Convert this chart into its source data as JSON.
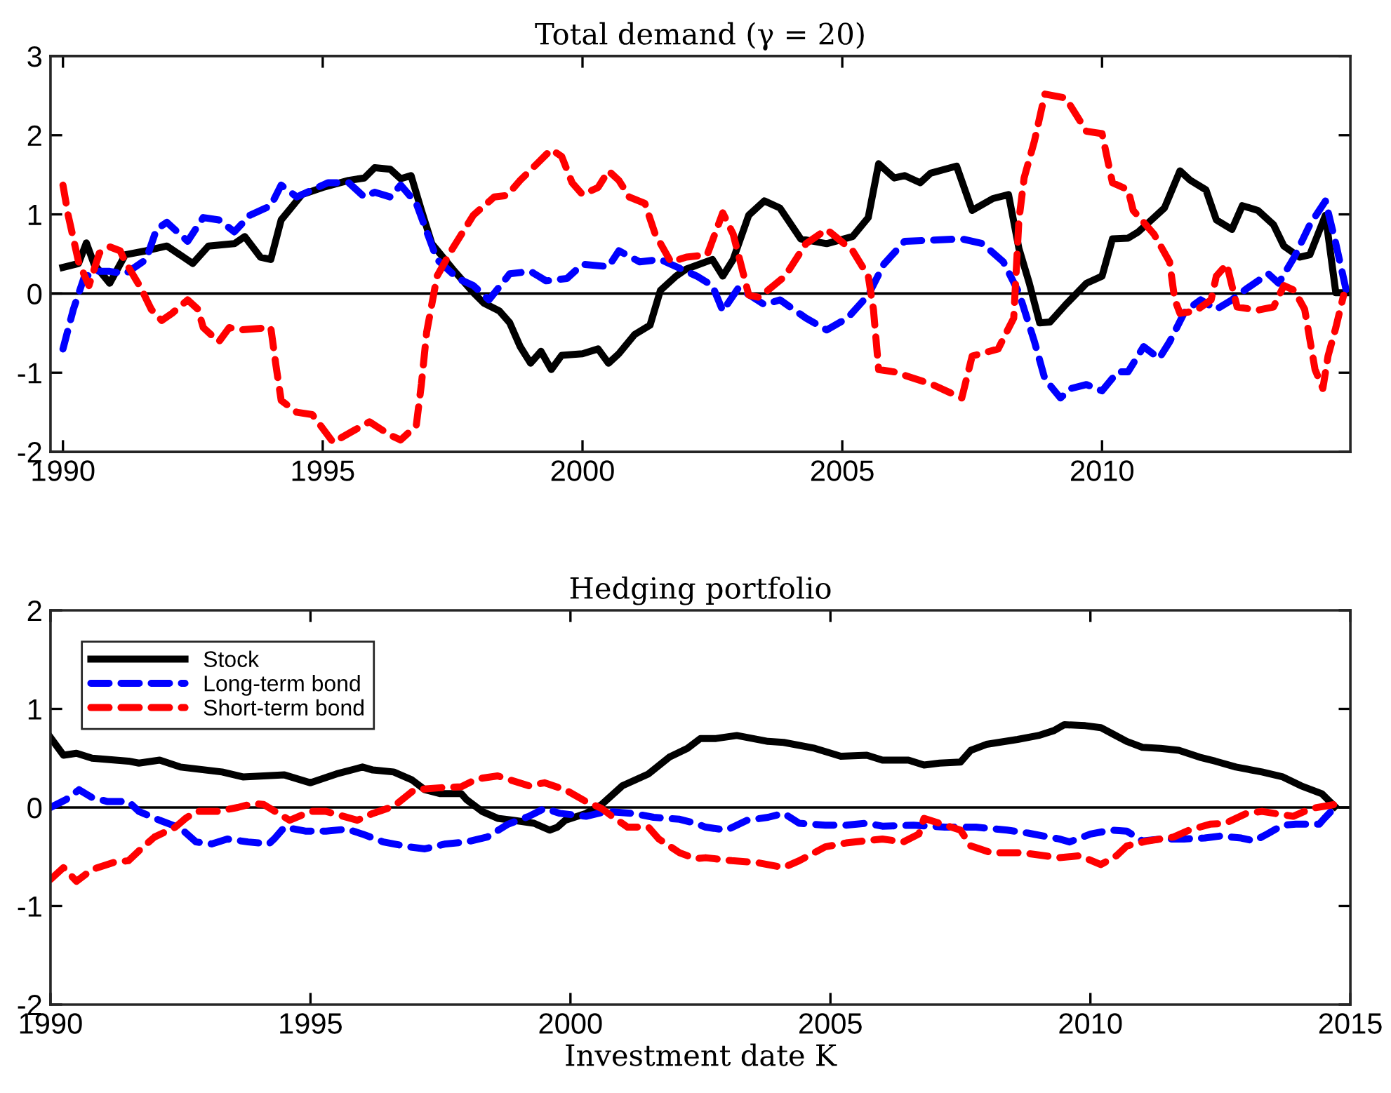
{
  "chart_data": [
    {
      "type": "line",
      "title": "Total demand (γ = 20)",
      "xlim": [
        1989.76,
        2014.78
      ],
      "xticks": [
        1990,
        1995,
        2000,
        2005,
        2010
      ],
      "ylim": [
        -2,
        3
      ],
      "yticks": [
        -2,
        -1,
        0,
        1,
        2,
        3
      ],
      "grid": false,
      "legend": false,
      "ref_lines": [
        {
          "axis": "y",
          "value": 0,
          "color": "#000000"
        }
      ],
      "series": [
        {
          "color": "#000000",
          "line_style": "solid",
          "x": [
            1990.0,
            1990.3,
            1990.45,
            1990.6,
            1990.9,
            1991.2,
            1991.6,
            1992.0,
            1992.5,
            1992.8,
            1993.3,
            1993.5,
            1993.8,
            1994.0,
            1994.2,
            1994.6,
            1995.0,
            1995.5,
            1995.8,
            1996.0,
            1996.3,
            1996.5,
            1996.7,
            1996.9,
            1997.1,
            1997.5,
            1997.9,
            1998.1,
            1998.4,
            1998.6,
            1998.8,
            1999.0,
            1999.2,
            1999.4,
            1999.6,
            2000.0,
            2000.3,
            2000.5,
            2000.7,
            2001.0,
            2001.3,
            2001.5,
            2001.8,
            2002.0,
            2002.5,
            2002.7,
            2002.9,
            2003.2,
            2003.5,
            2003.8,
            2004.2,
            2004.7,
            2005.2,
            2005.5,
            2005.7,
            2006.0,
            2006.2,
            2006.5,
            2006.7,
            2007.2,
            2007.5,
            2007.9,
            2008.2,
            2008.4,
            2008.6,
            2008.8,
            2009.0,
            2009.3,
            2009.7,
            2010.0,
            2010.2,
            2010.5,
            2010.7,
            2011.0,
            2011.2,
            2011.5,
            2011.7,
            2012.0,
            2012.2,
            2012.5,
            2012.7,
            2013.0,
            2013.3,
            2013.5,
            2013.8,
            2014.0,
            2014.3,
            2014.5,
            2014.7
          ],
          "values": [
            0.33,
            0.38,
            0.64,
            0.37,
            0.13,
            0.49,
            0.54,
            0.6,
            0.38,
            0.6,
            0.63,
            0.72,
            0.46,
            0.43,
            0.93,
            1.25,
            1.34,
            1.43,
            1.46,
            1.59,
            1.57,
            1.45,
            1.49,
            1.05,
            0.63,
            0.31,
            0.01,
            -0.12,
            -0.22,
            -0.37,
            -0.67,
            -0.88,
            -0.73,
            -0.96,
            -0.78,
            -0.76,
            -0.7,
            -0.88,
            -0.76,
            -0.52,
            -0.4,
            0.04,
            0.22,
            0.31,
            0.43,
            0.22,
            0.43,
            0.99,
            1.17,
            1.08,
            0.69,
            0.63,
            0.72,
            0.96,
            1.64,
            1.46,
            1.49,
            1.4,
            1.52,
            1.61,
            1.05,
            1.2,
            1.25,
            0.57,
            0.13,
            -0.37,
            -0.36,
            -0.14,
            0.13,
            0.22,
            0.69,
            0.7,
            0.78,
            0.96,
            1.08,
            1.55,
            1.43,
            1.31,
            0.93,
            0.81,
            1.11,
            1.05,
            0.87,
            0.6,
            0.46,
            0.49,
            0.99,
            0.01,
            0.01
          ]
        },
        {
          "color": "#0000ff",
          "line_style": "dashed",
          "x": [
            1990.0,
            1990.2,
            1990.4,
            1990.6,
            1990.9,
            1991.2,
            1991.6,
            1991.8,
            1992.0,
            1992.4,
            1992.7,
            1993.0,
            1993.3,
            1993.6,
            1994.0,
            1994.2,
            1994.5,
            1995.1,
            1995.5,
            1995.8,
            1996.0,
            1996.3,
            1996.5,
            1996.8,
            1997.2,
            1997.6,
            1997.9,
            1998.2,
            1998.6,
            1999.0,
            1999.3,
            1999.7,
            2000.0,
            2000.5,
            2000.7,
            2001.1,
            2001.5,
            2001.8,
            2002.2,
            2002.5,
            2002.7,
            2003.0,
            2003.5,
            2003.8,
            2004.3,
            2004.7,
            2005.1,
            2005.5,
            2005.8,
            2006.2,
            2006.9,
            2007.3,
            2007.7,
            2008.1,
            2008.4,
            2008.7,
            2008.9,
            2009.2,
            2009.4,
            2009.7,
            2010.0,
            2010.3,
            2010.5,
            2010.8,
            2011.1,
            2011.3,
            2011.6,
            2011.9,
            2012.2,
            2012.5,
            2012.8,
            2013.2,
            2013.4,
            2013.7,
            2014.0,
            2014.3,
            2014.5,
            2014.7
          ],
          "values": [
            -0.7,
            -0.2,
            0.19,
            0.28,
            0.28,
            0.25,
            0.43,
            0.81,
            0.9,
            0.66,
            0.96,
            0.93,
            0.78,
            0.99,
            1.11,
            1.37,
            1.22,
            1.4,
            1.4,
            1.22,
            1.28,
            1.22,
            1.37,
            1.14,
            0.43,
            0.19,
            0.1,
            -0.08,
            0.25,
            0.28,
            0.16,
            0.19,
            0.37,
            0.34,
            0.54,
            0.4,
            0.43,
            0.34,
            0.22,
            0.1,
            -0.22,
            0.07,
            -0.14,
            -0.08,
            -0.31,
            -0.46,
            -0.31,
            -0.02,
            0.37,
            0.66,
            0.68,
            0.69,
            0.63,
            0.4,
            0.01,
            -0.61,
            -1.08,
            -1.32,
            -1.2,
            -1.15,
            -1.23,
            -0.99,
            -0.99,
            -0.67,
            -0.82,
            -0.61,
            -0.22,
            -0.08,
            -0.2,
            -0.08,
            0.07,
            0.25,
            0.13,
            0.46,
            0.87,
            1.17,
            0.63,
            0.04
          ]
        },
        {
          "color": "#ff0000",
          "line_style": "dashed",
          "x": [
            1990.0,
            1990.1,
            1990.3,
            1990.5,
            1990.7,
            1990.9,
            1991.1,
            1991.2,
            1991.5,
            1991.7,
            1991.9,
            1992.1,
            1992.4,
            1992.6,
            1992.7,
            1993.0,
            1993.2,
            1993.4,
            1994.0,
            1994.1,
            1994.2,
            1994.5,
            1994.8,
            1995.2,
            1995.6,
            1995.9,
            1996.3,
            1996.5,
            1996.8,
            1996.9,
            1997.0,
            1997.2,
            1997.5,
            1997.9,
            1998.3,
            1998.55,
            1998.8,
            1999.4,
            1999.6,
            1999.8,
            2000.0,
            2000.3,
            2000.5,
            2000.7,
            2000.9,
            2001.2,
            2001.4,
            2001.7,
            2002.0,
            2002.4,
            2002.7,
            2002.9,
            2003.2,
            2003.4,
            2003.9,
            2004.3,
            2004.7,
            2005.2,
            2005.5,
            2005.6,
            2005.7,
            2006.0,
            2006.7,
            2007.3,
            2007.5,
            2008.0,
            2008.3,
            2008.4,
            2008.5,
            2008.7,
            2008.9,
            2009.3,
            2009.7,
            2010.0,
            2010.2,
            2010.5,
            2010.6,
            2011.0,
            2011.3,
            2011.4,
            2011.5,
            2011.8,
            2012.1,
            2012.2,
            2012.4,
            2012.6,
            2013.0,
            2013.3,
            2013.5,
            2013.7,
            2013.9,
            2014.1,
            2014.25,
            2014.35,
            2014.5,
            2014.65
          ],
          "values": [
            1.37,
            0.99,
            0.4,
            0.1,
            0.51,
            0.59,
            0.54,
            0.4,
            0.07,
            -0.2,
            -0.34,
            -0.25,
            -0.08,
            -0.2,
            -0.43,
            -0.61,
            -0.43,
            -0.46,
            -0.43,
            -0.91,
            -1.35,
            -1.5,
            -1.53,
            -1.88,
            -1.73,
            -1.62,
            -1.79,
            -1.85,
            -1.67,
            -1.14,
            -0.49,
            0.22,
            0.57,
            0.99,
            1.22,
            1.24,
            1.43,
            1.82,
            1.73,
            1.4,
            1.25,
            1.34,
            1.55,
            1.43,
            1.22,
            1.14,
            0.75,
            0.4,
            0.46,
            0.49,
            1.02,
            0.75,
            -0.02,
            -0.05,
            0.22,
            0.63,
            0.81,
            0.54,
            0.22,
            -0.2,
            -0.96,
            -0.99,
            -1.14,
            -1.32,
            -0.79,
            -0.7,
            -0.31,
            0.93,
            1.46,
            1.93,
            2.52,
            2.47,
            2.05,
            2.02,
            1.4,
            1.31,
            1.05,
            0.75,
            0.4,
            -0.08,
            -0.25,
            -0.22,
            -0.08,
            0.22,
            0.37,
            -0.17,
            -0.21,
            -0.17,
            0.1,
            0.04,
            -0.2,
            -0.96,
            -1.2,
            -0.79,
            -0.43,
            -0.02
          ]
        }
      ]
    },
    {
      "type": "line",
      "title": "Hedging portfolio",
      "xlabel": "Investment date K",
      "xlim": [
        1990,
        2015
      ],
      "xticks": [
        1990,
        1995,
        2000,
        2005,
        2010,
        2015
      ],
      "ylim": [
        -2,
        2
      ],
      "yticks": [
        -2,
        -1,
        0,
        1,
        2
      ],
      "grid": false,
      "legend": "top left",
      "ref_lines": [
        {
          "axis": "y",
          "value": 0,
          "color": "#000000"
        }
      ],
      "series": [
        {
          "name": "Stock",
          "color": "#000000",
          "line_style": "solid",
          "x": [
            1990.0,
            1990.25,
            1990.5,
            1990.8,
            1991.5,
            1991.7,
            1992.1,
            1992.5,
            1993.3,
            1993.7,
            1994.1,
            1994.5,
            1995.0,
            1995.5,
            1996.0,
            1996.2,
            1996.6,
            1996.95,
            1997.2,
            1997.5,
            1997.9,
            1998.0,
            1998.3,
            1998.6,
            1998.9,
            1999.3,
            1999.6,
            1999.75,
            1999.9,
            2000.3,
            2000.6,
            2001.0,
            2001.5,
            2001.9,
            2002.25,
            2002.5,
            2002.8,
            2003.2,
            2003.8,
            2004.1,
            2004.7,
            2005.2,
            2005.7,
            2006.0,
            2006.5,
            2006.8,
            2007.1,
            2007.5,
            2007.7,
            2008.0,
            2008.6,
            2009.0,
            2009.3,
            2009.5,
            2009.9,
            2010.2,
            2010.45,
            2010.7,
            2011.0,
            2011.35,
            2011.7,
            2012.1,
            2012.4,
            2012.8,
            2013.3,
            2013.7,
            2014.05,
            2014.45,
            2014.7
          ],
          "values": [
            0.71,
            0.53,
            0.55,
            0.5,
            0.47,
            0.45,
            0.48,
            0.41,
            0.36,
            0.31,
            0.32,
            0.33,
            0.25,
            0.34,
            0.41,
            0.38,
            0.36,
            0.28,
            0.18,
            0.14,
            0.14,
            0.08,
            -0.04,
            -0.11,
            -0.13,
            -0.16,
            -0.23,
            -0.2,
            -0.13,
            -0.06,
            0.03,
            0.22,
            0.34,
            0.51,
            0.6,
            0.7,
            0.7,
            0.73,
            0.67,
            0.66,
            0.6,
            0.52,
            0.53,
            0.48,
            0.48,
            0.43,
            0.45,
            0.46,
            0.58,
            0.64,
            0.69,
            0.73,
            0.78,
            0.84,
            0.83,
            0.81,
            0.74,
            0.67,
            0.61,
            0.6,
            0.58,
            0.51,
            0.47,
            0.41,
            0.36,
            0.31,
            0.22,
            0.14,
            0.01
          ]
        },
        {
          "name": "Long-term bond",
          "color": "#0000ff",
          "line_style": "dashed",
          "x": [
            1990.0,
            1990.3,
            1990.55,
            1990.8,
            1991.1,
            1991.5,
            1991.7,
            1992.1,
            1992.5,
            1992.8,
            1993.1,
            1993.4,
            1993.8,
            1994.2,
            1994.3,
            1994.5,
            1994.9,
            1995.3,
            1995.7,
            1996.0,
            1996.4,
            1996.9,
            1997.2,
            1997.6,
            1998.0,
            1998.4,
            1998.8,
            1999.2,
            1999.5,
            1999.8,
            2000.3,
            2000.7,
            2001.2,
            2001.6,
            2002.1,
            2002.4,
            2002.6,
            2003.0,
            2003.4,
            2003.8,
            2004.1,
            2004.4,
            2004.9,
            2005.3,
            2005.7,
            2006.0,
            2006.6,
            2007.2,
            2007.8,
            2008.4,
            2008.8,
            2009.4,
            2009.6,
            2010.0,
            2010.4,
            2010.7,
            2011.0,
            2011.35,
            2011.8,
            2012.2,
            2012.5,
            2012.9,
            2013.15,
            2013.4,
            2013.7,
            2013.95,
            2014.4,
            2014.5,
            2014.7
          ],
          "values": [
            0.0,
            0.08,
            0.18,
            0.1,
            0.06,
            0.06,
            -0.04,
            -0.13,
            -0.21,
            -0.35,
            -0.37,
            -0.32,
            -0.35,
            -0.37,
            -0.32,
            -0.2,
            -0.24,
            -0.24,
            -0.22,
            -0.27,
            -0.35,
            -0.4,
            -0.42,
            -0.37,
            -0.35,
            -0.3,
            -0.17,
            -0.09,
            -0.01,
            -0.06,
            -0.09,
            -0.04,
            -0.06,
            -0.1,
            -0.12,
            -0.16,
            -0.2,
            -0.23,
            -0.13,
            -0.1,
            -0.06,
            -0.16,
            -0.18,
            -0.18,
            -0.16,
            -0.19,
            -0.18,
            -0.2,
            -0.2,
            -0.23,
            -0.26,
            -0.32,
            -0.35,
            -0.27,
            -0.23,
            -0.24,
            -0.34,
            -0.32,
            -0.32,
            -0.31,
            -0.29,
            -0.31,
            -0.34,
            -0.27,
            -0.18,
            -0.17,
            -0.17,
            -0.11,
            0.0
          ]
        },
        {
          "name": "Short-term bond",
          "color": "#ff0000",
          "line_style": "dashed",
          "x": [
            1990.0,
            1990.25,
            1990.5,
            1990.8,
            1991.2,
            1991.5,
            1991.7,
            1992.0,
            1992.4,
            1992.6,
            1992.8,
            1993.2,
            1993.6,
            1993.9,
            1994.1,
            1994.6,
            1995.0,
            1995.3,
            1995.9,
            1996.2,
            1996.6,
            1997.0,
            1997.5,
            1997.9,
            1998.2,
            1998.6,
            1999.2,
            1999.5,
            1999.9,
            2000.3,
            2000.6,
            2000.8,
            2001.1,
            2001.5,
            2001.7,
            2002.1,
            2002.4,
            2002.6,
            2003.1,
            2003.6,
            2004.1,
            2004.4,
            2004.9,
            2005.3,
            2006.0,
            2006.4,
            2006.7,
            2006.8,
            2007.5,
            2007.7,
            2008.1,
            2008.7,
            2009.4,
            2009.8,
            2010.2,
            2010.5,
            2010.7,
            2011.1,
            2011.6,
            2011.9,
            2012.3,
            2012.6,
            2013.0,
            2013.3,
            2013.9,
            2014.25,
            2014.7
          ],
          "values": [
            -0.73,
            -0.61,
            -0.75,
            -0.63,
            -0.56,
            -0.54,
            -0.44,
            -0.3,
            -0.2,
            -0.11,
            -0.04,
            -0.04,
            0.0,
            0.04,
            0.03,
            -0.13,
            -0.04,
            -0.04,
            -0.13,
            -0.06,
            0.01,
            0.18,
            0.2,
            0.21,
            0.29,
            0.32,
            0.22,
            0.25,
            0.18,
            0.06,
            -0.01,
            -0.09,
            -0.2,
            -0.2,
            -0.32,
            -0.46,
            -0.52,
            -0.51,
            -0.54,
            -0.56,
            -0.61,
            -0.54,
            -0.4,
            -0.36,
            -0.32,
            -0.35,
            -0.27,
            -0.11,
            -0.23,
            -0.39,
            -0.46,
            -0.46,
            -0.51,
            -0.49,
            -0.58,
            -0.49,
            -0.39,
            -0.34,
            -0.3,
            -0.23,
            -0.17,
            -0.16,
            -0.06,
            -0.04,
            -0.09,
            -0.01,
            0.03
          ]
        }
      ]
    }
  ]
}
